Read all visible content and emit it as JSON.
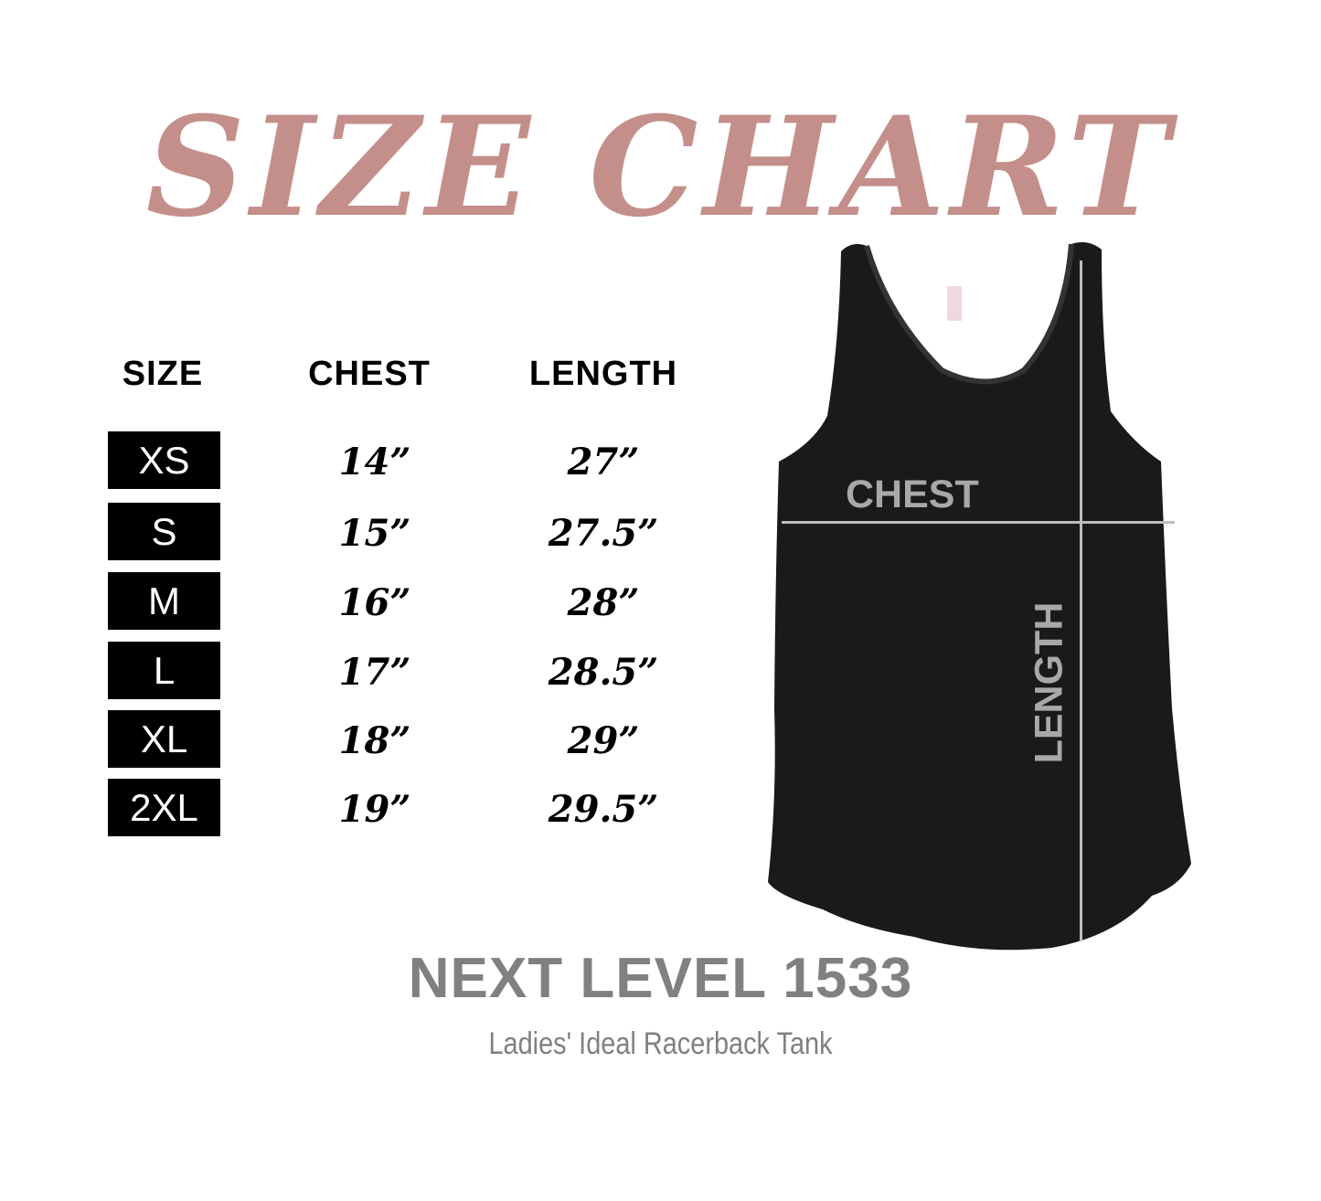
{
  "title": "SIZE CHART",
  "title_color": "#c48f8a",
  "headers": {
    "size": "SIZE",
    "chest": "CHEST",
    "length": "LENGTH"
  },
  "rows": [
    {
      "size": "XS",
      "chest": "14”",
      "length": "27”"
    },
    {
      "size": "S",
      "chest": "15”",
      "length": "27.5”"
    },
    {
      "size": "M",
      "chest": "16”",
      "length": "28”"
    },
    {
      "size": "L",
      "chest": "17”",
      "length": "28.5”"
    },
    {
      "size": "XL",
      "chest": "18”",
      "length": "29”"
    },
    {
      "size": "2XL",
      "chest": "19”",
      "length": "29.5”"
    }
  ],
  "diagram": {
    "chest_label": "CHEST",
    "length_label": "LENGTH",
    "garment_color": "#1a1a1a"
  },
  "product": {
    "model": "NEXT LEVEL 1533",
    "description": "Ladies' Ideal Racerback Tank"
  }
}
